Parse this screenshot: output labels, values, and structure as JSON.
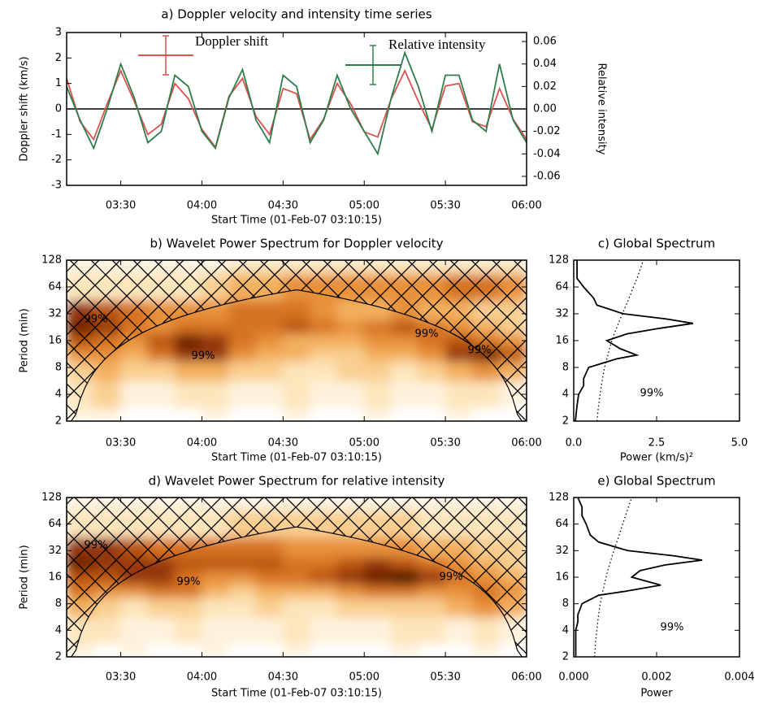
{
  "chart_data": [
    {
      "type": "line",
      "title": "a) Doppler velocity and intensity time series",
      "xlabel": "Start Time (01-Feb-07 03:10:15)",
      "ylabel": "Doppler shift (km/s)",
      "y2label": "Relative intensity",
      "x": [
        "03:10",
        "03:15",
        "03:20",
        "03:25",
        "03:30",
        "03:35",
        "03:40",
        "03:45",
        "03:50",
        "03:55",
        "04:00",
        "04:05",
        "04:10",
        "04:15",
        "04:20",
        "04:25",
        "04:30",
        "04:35",
        "04:40",
        "04:45",
        "04:50",
        "04:55",
        "05:00",
        "05:05",
        "05:10",
        "05:15",
        "05:20",
        "05:25",
        "05:30",
        "05:35",
        "05:40",
        "05:45",
        "05:50",
        "05:55",
        "06:00"
      ],
      "xlim": [
        "03:10",
        "06:00"
      ],
      "xticks": [
        "03:30",
        "04:00",
        "04:30",
        "05:00",
        "05:30",
        "06:00"
      ],
      "ylim": [
        -3,
        3
      ],
      "yticks": [
        -3,
        -2,
        -1,
        0,
        1,
        2,
        3
      ],
      "y2lim": [
        -0.068,
        0.068
      ],
      "y2ticks": [
        -0.06,
        -0.04,
        -0.02,
        {
          "value": 0,
          "label": "0.00"
        },
        0.02,
        0.04,
        0.06
      ],
      "series": [
        {
          "name": "Doppler shift",
          "color": "#d9534f",
          "values": [
            1.2,
            -0.5,
            -1.2,
            0.2,
            1.5,
            0.3,
            -1.0,
            -0.6,
            1.0,
            0.4,
            -0.8,
            -1.5,
            0.5,
            1.2,
            -0.3,
            -1.0,
            0.8,
            0.6,
            -1.2,
            -0.4,
            1.0,
            0.2,
            -0.9,
            -1.1,
            0.4,
            1.5,
            0.3,
            -0.8,
            0.9,
            1.0,
            -0.5,
            -0.7,
            0.8,
            -0.4,
            -1.2
          ]
        },
        {
          "name": "Relative intensity",
          "color": "#2e7d4a",
          "axis": "y2",
          "values": [
            0.02,
            -0.01,
            -0.035,
            0.0,
            0.04,
            0.01,
            -0.03,
            -0.02,
            0.03,
            0.02,
            -0.02,
            -0.035,
            0.01,
            0.035,
            -0.01,
            -0.03,
            0.03,
            0.02,
            -0.03,
            -0.01,
            0.03,
            0.0,
            -0.02,
            -0.04,
            0.01,
            0.05,
            0.02,
            -0.02,
            0.03,
            0.03,
            -0.01,
            -0.02,
            0.04,
            -0.01,
            -0.03
          ]
        }
      ]
    },
    {
      "type": "heatmap",
      "title": "b) Wavelet Power Spectrum for Doppler velocity",
      "xlabel": "Start Time (01-Feb-07 03:10:15)",
      "ylabel": "Period (min)",
      "x": [
        "03:15",
        "03:25",
        "03:35",
        "03:45",
        "03:55",
        "04:05",
        "04:15",
        "04:25",
        "04:35",
        "04:45",
        "04:55",
        "05:05",
        "05:15",
        "05:25",
        "05:35",
        "05:45",
        "05:55"
      ],
      "y": [
        2,
        4,
        8,
        11,
        16,
        23,
        32,
        64,
        128
      ],
      "xlim": [
        "03:10",
        "06:00"
      ],
      "xticks": [
        "03:30",
        "04:00",
        "04:30",
        "05:00",
        "05:30",
        "06:00"
      ],
      "ylim": [
        2,
        128
      ],
      "yticks": [
        2,
        4,
        8,
        16,
        32,
        64,
        128
      ],
      "ylog": true,
      "z": [
        [
          1,
          1,
          0,
          0,
          0,
          1,
          0,
          0,
          1,
          0,
          0,
          1,
          0,
          0,
          1,
          0,
          0
        ],
        [
          2,
          3,
          1,
          1,
          2,
          2,
          1,
          1,
          2,
          1,
          1,
          2,
          1,
          1,
          2,
          2,
          1
        ],
        [
          3,
          4,
          3,
          3,
          4,
          4,
          3,
          3,
          2,
          2,
          3,
          3,
          2,
          3,
          4,
          5,
          4
        ],
        [
          5,
          5,
          4,
          6,
          8,
          8,
          5,
          4,
          4,
          3,
          3,
          4,
          4,
          5,
          8,
          9,
          7
        ],
        [
          7,
          6,
          5,
          7,
          9,
          8,
          6,
          5,
          4,
          4,
          4,
          5,
          5,
          6,
          7,
          6,
          5
        ],
        [
          9,
          8,
          6,
          5,
          6,
          6,
          6,
          6,
          7,
          6,
          5,
          6,
          7,
          6,
          5,
          4,
          3
        ],
        [
          8,
          7,
          6,
          5,
          5,
          5,
          6,
          6,
          6,
          5,
          4,
          4,
          5,
          4,
          4,
          3,
          3
        ],
        [
          2,
          2,
          2,
          2,
          2,
          3,
          4,
          4,
          5,
          5,
          5,
          5,
          5,
          5,
          6,
          6,
          5
        ],
        [
          1,
          1,
          1,
          1,
          1,
          1,
          2,
          2,
          2,
          2,
          2,
          2,
          2,
          2,
          2,
          2,
          2
        ]
      ],
      "annotations": [
        "99%",
        "99%",
        "99%",
        "99%"
      ]
    },
    {
      "type": "line",
      "orientation": "horizontal",
      "title": "c) Global Spectrum",
      "xlabel": "Power (km/s)²",
      "y": [
        2,
        3,
        4,
        5,
        6,
        8,
        10,
        11,
        13,
        16,
        19,
        22,
        25,
        28,
        32,
        40,
        48,
        64,
        80,
        100,
        128
      ],
      "xlim": [
        0,
        5
      ],
      "xticks": [
        {
          "value": 0,
          "label": "0.0"
        },
        2.5,
        {
          "value": 5,
          "label": "5.0"
        }
      ],
      "ylim": [
        2,
        128
      ],
      "yticks": [
        2,
        4,
        8,
        16,
        32,
        64,
        128
      ],
      "ylog": true,
      "series": [
        {
          "color": "#000000",
          "values": [
            0.05,
            0.1,
            0.15,
            0.3,
            0.3,
            0.45,
            1.3,
            1.9,
            1.4,
            1.0,
            1.6,
            2.6,
            3.6,
            2.8,
            1.5,
            0.7,
            0.6,
            0.3,
            0.1,
            0.1,
            0.1
          ]
        },
        {
          "color": "#000000",
          "dash": "dotted",
          "values": [
            0.7,
            0.75,
            0.8,
            0.83,
            0.87,
            0.93,
            1.0,
            1.03,
            1.08,
            1.15,
            1.22,
            1.29,
            1.35,
            1.4,
            1.47,
            1.58,
            1.67,
            1.8,
            1.91,
            2.0,
            2.1
          ]
        }
      ],
      "annotations": [
        "99%"
      ]
    },
    {
      "type": "heatmap",
      "title": "d) Wavelet Power Spectrum for relative intensity",
      "xlabel": "Start Time (01-Feb-07 03:10:15)",
      "ylabel": "Period (min)",
      "x": [
        "03:15",
        "03:25",
        "03:35",
        "03:45",
        "03:55",
        "04:05",
        "04:15",
        "04:25",
        "04:35",
        "04:45",
        "04:55",
        "05:05",
        "05:15",
        "05:25",
        "05:35",
        "05:45",
        "05:55"
      ],
      "y": [
        2,
        4,
        8,
        11,
        16,
        23,
        32,
        64,
        128
      ],
      "xlim": [
        "03:10",
        "06:00"
      ],
      "xticks": [
        "03:30",
        "04:00",
        "04:30",
        "05:00",
        "05:30",
        "06:00"
      ],
      "ylim": [
        2,
        128
      ],
      "yticks": [
        2,
        4,
        8,
        16,
        32,
        64,
        128
      ],
      "ylog": true,
      "z": [
        [
          1,
          0,
          1,
          0,
          0,
          1,
          0,
          0,
          1,
          0,
          0,
          0,
          1,
          0,
          0,
          1,
          0
        ],
        [
          2,
          2,
          1,
          1,
          2,
          1,
          1,
          1,
          2,
          1,
          1,
          1,
          2,
          2,
          1,
          2,
          1
        ],
        [
          4,
          3,
          2,
          3,
          3,
          2,
          2,
          3,
          2,
          2,
          3,
          3,
          3,
          3,
          4,
          5,
          4
        ],
        [
          6,
          5,
          5,
          6,
          6,
          4,
          3,
          4,
          4,
          4,
          5,
          6,
          6,
          5,
          5,
          6,
          5
        ],
        [
          7,
          7,
          8,
          8,
          6,
          5,
          5,
          6,
          6,
          7,
          8,
          9,
          10,
          8,
          6,
          5,
          4
        ],
        [
          9,
          8,
          8,
          8,
          7,
          7,
          7,
          7,
          6,
          6,
          7,
          8,
          7,
          6,
          5,
          4,
          3
        ],
        [
          8,
          8,
          7,
          6,
          6,
          6,
          6,
          6,
          5,
          5,
          5,
          5,
          5,
          4,
          4,
          3,
          3
        ],
        [
          2,
          2,
          2,
          2,
          2,
          2,
          3,
          3,
          3,
          3,
          3,
          3,
          3,
          2,
          2,
          2,
          2
        ],
        [
          1,
          1,
          1,
          1,
          1,
          1,
          1,
          1,
          1,
          1,
          1,
          1,
          1,
          1,
          1,
          1,
          1
        ]
      ],
      "annotations": [
        "99%",
        "99%",
        "99%"
      ]
    },
    {
      "type": "line",
      "orientation": "horizontal",
      "title": "e) Global Spectrum",
      "xlabel": "Power",
      "y": [
        2,
        3,
        4,
        5,
        6,
        8,
        10,
        11,
        13,
        16,
        19,
        22,
        25,
        28,
        32,
        40,
        48,
        64,
        80,
        100,
        128
      ],
      "xlim": [
        0,
        0.004
      ],
      "xticks": [
        {
          "value": 0,
          "label": "0.000"
        },
        {
          "value": 0.002,
          "label": "0.002"
        },
        {
          "value": 0.004,
          "label": "0.004"
        }
      ],
      "ylim": [
        2,
        128
      ],
      "yticks": [
        2,
        4,
        8,
        16,
        32,
        64,
        128
      ],
      "ylog": true,
      "series": [
        {
          "color": "#000000",
          "values": [
            5e-05,
            5e-05,
            5e-05,
            0.0001,
            0.0001,
            0.0002,
            0.0006,
            0.0012,
            0.0021,
            0.0014,
            0.0016,
            0.0022,
            0.0031,
            0.0024,
            0.0013,
            0.0006,
            0.0004,
            0.0003,
            0.0002,
            0.0002,
            0.0001
          ]
        },
        {
          "color": "#000000",
          "dash": "dotted",
          "values": [
            0.0005,
            0.00053,
            0.00056,
            0.00058,
            0.0006,
            0.00064,
            0.00068,
            0.0007,
            0.00074,
            0.00078,
            0.00082,
            0.00086,
            0.0009,
            0.00093,
            0.00097,
            0.00104,
            0.0011,
            0.00118,
            0.00125,
            0.00132,
            0.0014
          ]
        }
      ],
      "annotations": [
        "99%"
      ]
    }
  ]
}
